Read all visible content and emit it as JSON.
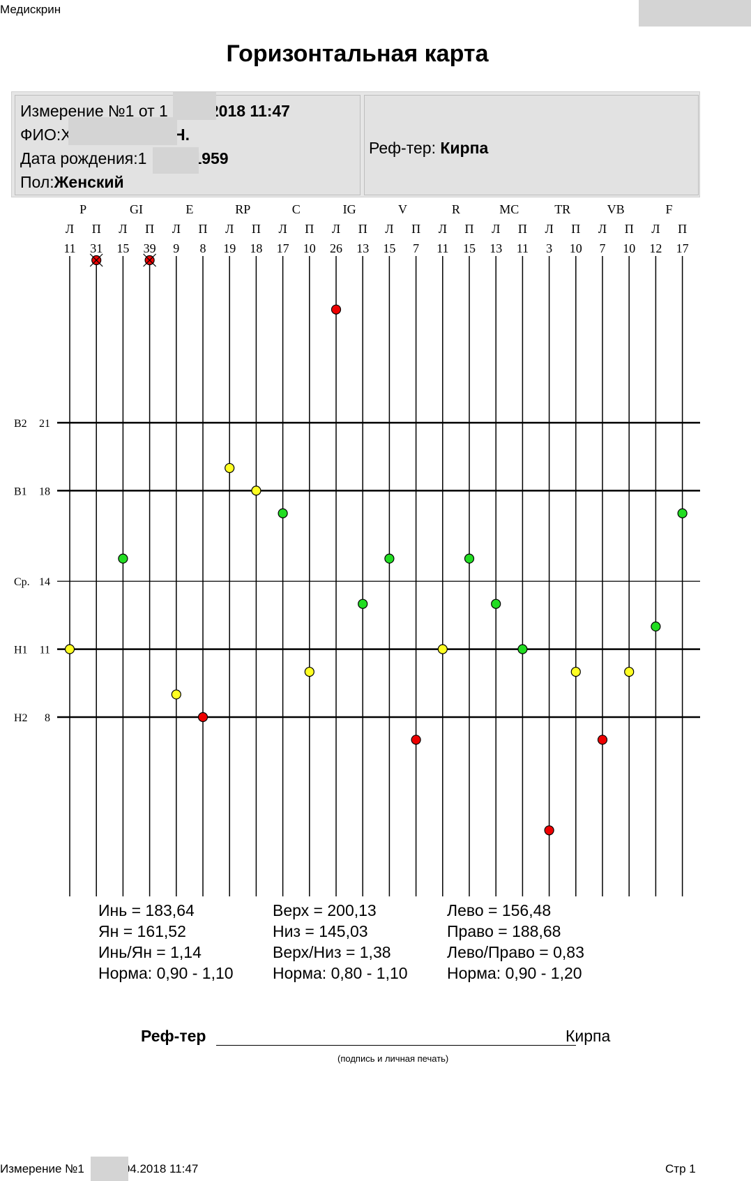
{
  "header": {
    "app_name": "Медискрин"
  },
  "page_title": "Горизонтальная карта",
  "info": {
    "measurement_prefix": "Измерение №1 от 1",
    "measurement_suffix": "2018 11:47",
    "fio_label": "ФИО:",
    "fio_prefix": "Х",
    "fio_suffix": ".Н.",
    "birth_label": "Дата рождения:",
    "birth_prefix": "1",
    "birth_suffix": "1959",
    "sex_label": "Пол:",
    "sex_value": "Женский",
    "referent_label": "Реф-тер:",
    "referent_value": "Кирпа"
  },
  "chart_data": {
    "type": "scatter",
    "groups": [
      "P",
      "GI",
      "E",
      "RP",
      "C",
      "IG",
      "V",
      "R",
      "MC",
      "TR",
      "VB",
      "F"
    ],
    "side_labels": [
      "Л",
      "П"
    ],
    "channels": [
      {
        "group": "P",
        "side": "Л",
        "value": 11,
        "status": "yellow"
      },
      {
        "group": "P",
        "side": "П",
        "value": 31,
        "status": "red-crossed"
      },
      {
        "group": "GI",
        "side": "Л",
        "value": 15,
        "status": "green"
      },
      {
        "group": "GI",
        "side": "П",
        "value": 39,
        "status": "red-crossed"
      },
      {
        "group": "E",
        "side": "Л",
        "value": 9,
        "status": "yellow"
      },
      {
        "group": "E",
        "side": "П",
        "value": 8,
        "status": "red"
      },
      {
        "group": "RP",
        "side": "Л",
        "value": 19,
        "status": "yellow"
      },
      {
        "group": "RP",
        "side": "П",
        "value": 18,
        "status": "yellow"
      },
      {
        "group": "C",
        "side": "Л",
        "value": 17,
        "status": "green"
      },
      {
        "group": "C",
        "side": "П",
        "value": 10,
        "status": "yellow"
      },
      {
        "group": "IG",
        "side": "Л",
        "value": 26,
        "status": "red"
      },
      {
        "group": "IG",
        "side": "П",
        "value": 13,
        "status": "green"
      },
      {
        "group": "V",
        "side": "Л",
        "value": 15,
        "status": "green"
      },
      {
        "group": "V",
        "side": "П",
        "value": 7,
        "status": "red"
      },
      {
        "group": "R",
        "side": "Л",
        "value": 11,
        "status": "yellow"
      },
      {
        "group": "R",
        "side": "П",
        "value": 15,
        "status": "green"
      },
      {
        "group": "MC",
        "side": "Л",
        "value": 13,
        "status": "green"
      },
      {
        "group": "MC",
        "side": "П",
        "value": 11,
        "status": "green"
      },
      {
        "group": "TR",
        "side": "Л",
        "value": 3,
        "status": "red"
      },
      {
        "group": "TR",
        "side": "П",
        "value": 10,
        "status": "yellow"
      },
      {
        "group": "VB",
        "side": "Л",
        "value": 7,
        "status": "red"
      },
      {
        "group": "VB",
        "side": "П",
        "value": 10,
        "status": "yellow"
      },
      {
        "group": "F",
        "side": "Л",
        "value": 12,
        "status": "green"
      },
      {
        "group": "F",
        "side": "П",
        "value": 17,
        "status": "green"
      }
    ],
    "reference_lines": [
      {
        "label": "B2",
        "value": 21,
        "bold": true
      },
      {
        "label": "B1",
        "value": 18,
        "bold": true
      },
      {
        "label": "Ср.",
        "value": 14,
        "bold": false
      },
      {
        "label": "H1",
        "value": 11,
        "bold": true
      },
      {
        "label": "H2",
        "value": 8,
        "bold": true
      }
    ],
    "colors": {
      "green": "#22dd22",
      "yellow": "#ffff22",
      "red": "#ee0000"
    }
  },
  "stats": {
    "col1": [
      "Инь = 183,64",
      "Ян = 161,52",
      "Инь/Ян = 1,14",
      "Норма: 0,90 - 1,10"
    ],
    "col2": [
      "Верх = 200,13",
      "Низ = 145,03",
      "Верх/Низ = 1,38",
      "Норма: 0,80 - 1,10"
    ],
    "col3": [
      "Лево = 156,48",
      "Право = 188,68",
      "Лево/Право = 0,83",
      "Норма: 0,90 - 1,20"
    ]
  },
  "signature": {
    "label": "Реф-тер",
    "name": "Кирпа",
    "caption": "(подпись и личная печать)"
  },
  "footer": {
    "measurement_prefix": "Измерение №1",
    "measurement_suffix": "04.2018 11:47",
    "page": "Стр 1"
  }
}
